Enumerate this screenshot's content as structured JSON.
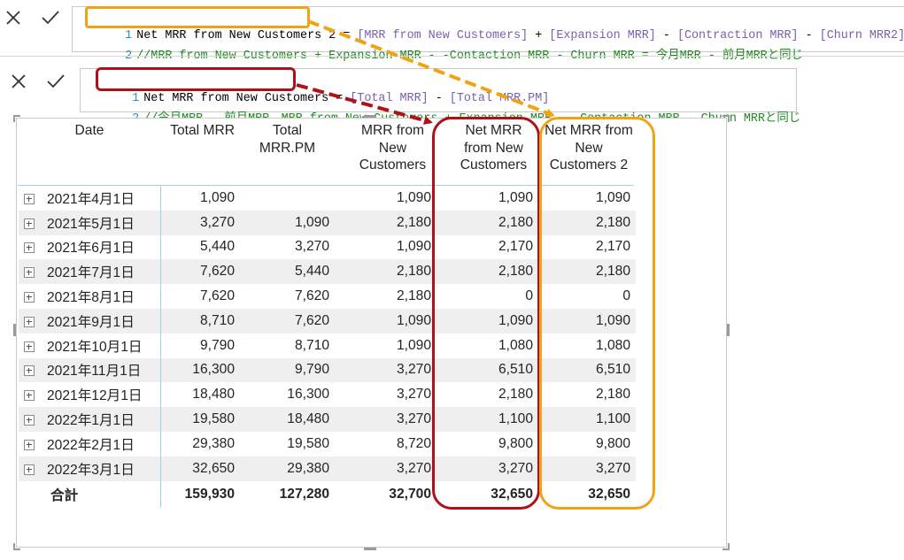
{
  "formula_bar_1": {
    "line1": {
      "num": "1",
      "measure_name": "Net MRR from New Customers 2",
      "eq": " = ",
      "ref1": "[MRR from New Customers]",
      "op1": " + ",
      "ref2": "[Expansion MRR]",
      "op2": " - ",
      "ref3": "[Contraction MRR]",
      "op3": " - ",
      "ref4": "[Churn MRR2]"
    },
    "line2": {
      "num": "2",
      "comment": "//MRR from New Customers + Expansion MRR - -Contaction MRR - Churn MRR = 今月MRR - 前月MRRと同じ"
    }
  },
  "formula_bar_2": {
    "line1": {
      "num": "1",
      "measure_name": "Net MRR from New Customers",
      "eq": " = ",
      "ref1": "[Total MRR]",
      "op1": " - ",
      "ref2": "[Total MRR.PM]"
    },
    "line2": {
      "num": "2",
      "comment": "//今月MRR - 前月MRR。MRR from New Customers + Expansion MRR - -Contaction MRR - Churn MRRと同じ"
    }
  },
  "table": {
    "headers": {
      "date": "Date",
      "total_mrr": "Total MRR",
      "total_mrr_pm": "Total MRR.PM",
      "mrr_new": "MRR from New Customers",
      "net_mrr_new": "Net MRR from New Customers",
      "net_mrr_new2": "Net MRR from New Customers 2"
    },
    "rows": [
      {
        "date": "2021年4月1日",
        "total": "1,090",
        "pm": "",
        "mrr_new": "1,090",
        "net": "1,090",
        "net2": "1,090"
      },
      {
        "date": "2021年5月1日",
        "total": "3,270",
        "pm": "1,090",
        "mrr_new": "2,180",
        "net": "2,180",
        "net2": "2,180"
      },
      {
        "date": "2021年6月1日",
        "total": "5,440",
        "pm": "3,270",
        "mrr_new": "1,090",
        "net": "2,170",
        "net2": "2,170"
      },
      {
        "date": "2021年7月1日",
        "total": "7,620",
        "pm": "5,440",
        "mrr_new": "2,180",
        "net": "2,180",
        "net2": "2,180"
      },
      {
        "date": "2021年8月1日",
        "total": "7,620",
        "pm": "7,620",
        "mrr_new": "2,180",
        "net": "0",
        "net2": "0"
      },
      {
        "date": "2021年9月1日",
        "total": "8,710",
        "pm": "7,620",
        "mrr_new": "1,090",
        "net": "1,090",
        "net2": "1,090"
      },
      {
        "date": "2021年10月1日",
        "total": "9,790",
        "pm": "8,710",
        "mrr_new": "1,090",
        "net": "1,080",
        "net2": "1,080"
      },
      {
        "date": "2021年11月1日",
        "total": "16,300",
        "pm": "9,790",
        "mrr_new": "3,270",
        "net": "6,510",
        "net2": "6,510"
      },
      {
        "date": "2021年12月1日",
        "total": "18,480",
        "pm": "16,300",
        "mrr_new": "3,270",
        "net": "2,180",
        "net2": "2,180"
      },
      {
        "date": "2022年1月1日",
        "total": "19,580",
        "pm": "18,480",
        "mrr_new": "3,270",
        "net": "1,100",
        "net2": "1,100"
      },
      {
        "date": "2022年2月1日",
        "total": "29,380",
        "pm": "19,580",
        "mrr_new": "8,720",
        "net": "9,800",
        "net2": "9,800"
      },
      {
        "date": "2022年3月1日",
        "total": "32,650",
        "pm": "29,380",
        "mrr_new": "3,270",
        "net": "3,270",
        "net2": "3,270"
      }
    ],
    "total_row": {
      "label": "合計",
      "total": "159,930",
      "pm": "127,280",
      "mrr_new": "32,700",
      "net": "32,650",
      "net2": "32,650"
    }
  },
  "colors": {
    "highlight_red": "#b0101a",
    "highlight_orange": "#f0a415",
    "comment_green": "#1f8a1f",
    "reference_purple": "#7a5fae"
  }
}
